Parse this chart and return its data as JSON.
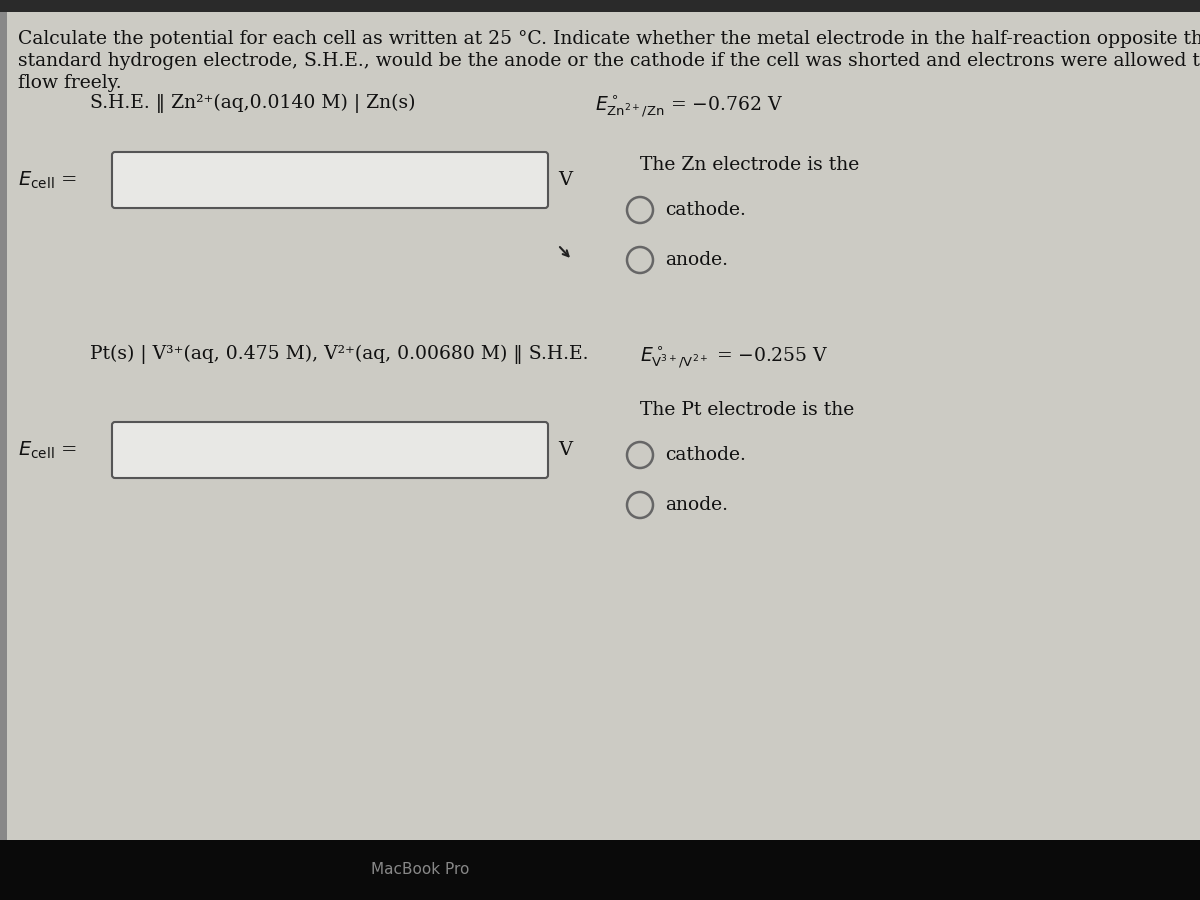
{
  "bg_color": "#cccbc4",
  "top_bar_color": "#2a2a2a",
  "text_color": "#111111",
  "header_line1": "Calculate the potential for each cell as written at 25 °C. Indicate whether the metal electrode in the half-reaction opposite the",
  "header_line2": "standard hydrogen electrode, S.H.E., would be the anode or the cathode if the cell was shorted and electrons were allowed to",
  "header_line3": "flow freely.",
  "cell1_notation": "S.H.E. ‖ Zn²⁺(aq,0.0140 M) | Zn(s)",
  "cell1_unit": "V",
  "cell1_question": "The Zn electrode is the",
  "cell1_options": [
    "cathode.",
    "anode."
  ],
  "cell2_notation": "Pt(s) | V³⁺(aq, 0.475 M), V²⁺(aq, 0.00680 M) ‖ S.H.E.",
  "cell2_unit": "V",
  "cell2_question": "The Pt electrode is the",
  "cell2_options": [
    "cathode.",
    "anode."
  ],
  "bottom_bar_color": "#0a0a0a",
  "bottom_text": "MacBook Pro",
  "input_box_color": "#e8e8e5",
  "input_box_edge": "#555555",
  "circle_color": "#666666",
  "left_bar_color": "#888888",
  "font_size_header": 13.5,
  "font_size_notation": 13.5,
  "font_size_ecell": 14,
  "font_size_options": 13.5
}
